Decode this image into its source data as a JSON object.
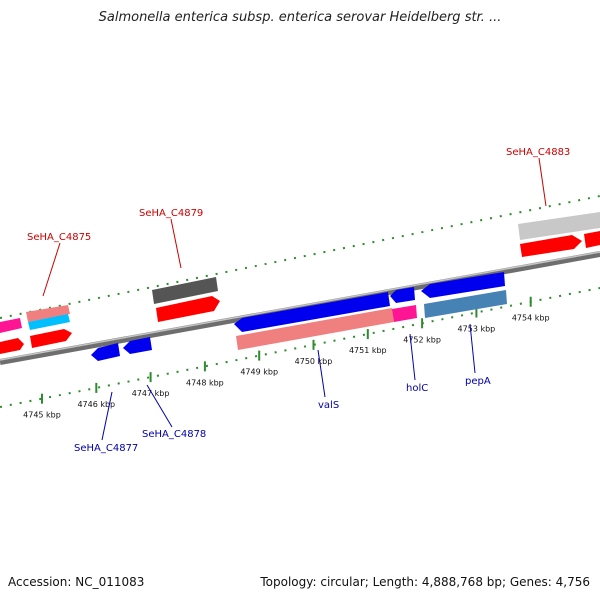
{
  "title": "Salmonella enterica subsp. enterica serovar Heidelberg str. ...",
  "footer": {
    "accession": "Accession: NC_011083",
    "topology": "Topology: circular; Length: 4,888,768 bp; Genes: 4,756"
  },
  "colors": {
    "backbone": "#7f7f7f",
    "tick_dots": "#2e8b2e",
    "label_forward": "#cc0000",
    "label_reverse": "#0000aa",
    "forward_cds": "#ff0000",
    "reverse_cds": "#0000ee",
    "pink": "#ff1493",
    "salmon": "#f08080",
    "cyan": "#00bfff",
    "steelblue": "#4682b4",
    "dark_gray": "#555555",
    "light_gray": "#c8c8c8"
  },
  "ticks": [
    {
      "label": "4745 kbp"
    },
    {
      "label": "4746 kbp"
    },
    {
      "label": "4747 kbp"
    },
    {
      "label": "4748 kbp"
    },
    {
      "label": "4749 kbp"
    },
    {
      "label": "4750 kbp"
    },
    {
      "label": "4751 kbp"
    },
    {
      "label": "4752 kbp"
    },
    {
      "label": "4753 kbp"
    },
    {
      "label": "4754 kbp"
    }
  ],
  "labels": {
    "forward": [
      "SeHA_C4875",
      "SeHA_C4879",
      "SeHA_C4883"
    ],
    "reverse": [
      "SeHA_C4877",
      "SeHA_C4878",
      "valS",
      "holC",
      "pepA"
    ]
  }
}
